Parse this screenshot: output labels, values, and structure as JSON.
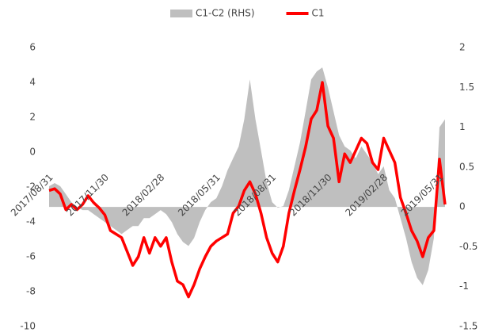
{
  "chart_data": {
    "type": "line",
    "categories": [
      "2017/08/31",
      null,
      null,
      null,
      null,
      null,
      null,
      null,
      null,
      null,
      "2017/11/30",
      null,
      null,
      null,
      null,
      null,
      null,
      null,
      null,
      null,
      "2018/02/28",
      null,
      null,
      null,
      null,
      null,
      null,
      null,
      null,
      null,
      "2018/05/31",
      null,
      null,
      null,
      null,
      null,
      null,
      null,
      null,
      null,
      "2018/08/31",
      null,
      null,
      null,
      null,
      null,
      null,
      null,
      null,
      null,
      "2018/11/30",
      null,
      null,
      null,
      null,
      null,
      null,
      null,
      null,
      null,
      "2019/02/28",
      null,
      null,
      null,
      null,
      null,
      null,
      null,
      null,
      null,
      "2019/05/31",
      null
    ],
    "series": [
      {
        "name": "C1-C2 (RHS)",
        "color": "#bfbfbf",
        "axis": "y2",
        "kind": "area",
        "values": [
          0.26,
          0.3,
          0.26,
          0.16,
          0.06,
          0,
          -0.04,
          -0.04,
          -0.09,
          -0.14,
          -0.19,
          -0.24,
          -0.29,
          -0.34,
          -0.29,
          -0.24,
          -0.24,
          -0.14,
          -0.14,
          -0.09,
          -0.04,
          -0.09,
          -0.19,
          -0.34,
          -0.44,
          -0.49,
          -0.39,
          -0.19,
          -0.04,
          0.06,
          0.11,
          0.26,
          0.46,
          0.61,
          0.76,
          1.1,
          1.6,
          1.1,
          0.71,
          0.31,
          0.06,
          -0.01,
          0.01,
          0.21,
          0.51,
          0.81,
          1.2,
          1.6,
          1.7,
          1.75,
          1.5,
          1.2,
          0.9,
          0.76,
          0.71,
          0.61,
          0.76,
          0.66,
          0.56,
          0.41,
          0.51,
          0.21,
          0.11,
          -0.14,
          -0.39,
          -0.69,
          -0.89,
          -0.98,
          -0.79,
          -0.39,
          1.0,
          1.1
        ]
      },
      {
        "name": "C1",
        "color": "#ff0000",
        "kind": "line",
        "values": [
          -2.2,
          -2.1,
          -2.4,
          -3.3,
          -3.0,
          -3.3,
          -3.0,
          -2.5,
          -2.9,
          -3.2,
          -3.6,
          -4.5,
          -4.7,
          -4.9,
          -5.7,
          -6.5,
          -6.0,
          -4.9,
          -5.8,
          -4.9,
          -5.4,
          -4.9,
          -6.3,
          -7.4,
          -7.6,
          -8.3,
          -7.6,
          -6.7,
          -6.0,
          -5.4,
          -5.1,
          -4.9,
          -4.7,
          -3.5,
          -3.1,
          -2.2,
          -1.7,
          -2.4,
          -3.5,
          -4.9,
          -5.8,
          -6.3,
          -5.4,
          -3.5,
          -2.2,
          -1.0,
          0.3,
          1.9,
          2.4,
          4.0,
          1.5,
          0.8,
          -1.7,
          -0.1,
          -0.6,
          0.1,
          0.8,
          0.5,
          -0.6,
          -1.0,
          0.8,
          0.1,
          -0.6,
          -2.6,
          -3.5,
          -4.5,
          -5.1,
          -6.0,
          -4.9,
          -4.5,
          -0.4,
          -3.0
        ]
      }
    ],
    "ylim": [
      -10,
      6
    ],
    "yticks": [
      -10,
      -8,
      -6,
      -4,
      -2,
      0,
      2,
      4,
      6
    ],
    "y2lim": [
      -1.5,
      2
    ],
    "y2ticks": [
      -1.5,
      -1,
      -0.5,
      0,
      0.5,
      1,
      1.5,
      2
    ],
    "legend": "top"
  }
}
